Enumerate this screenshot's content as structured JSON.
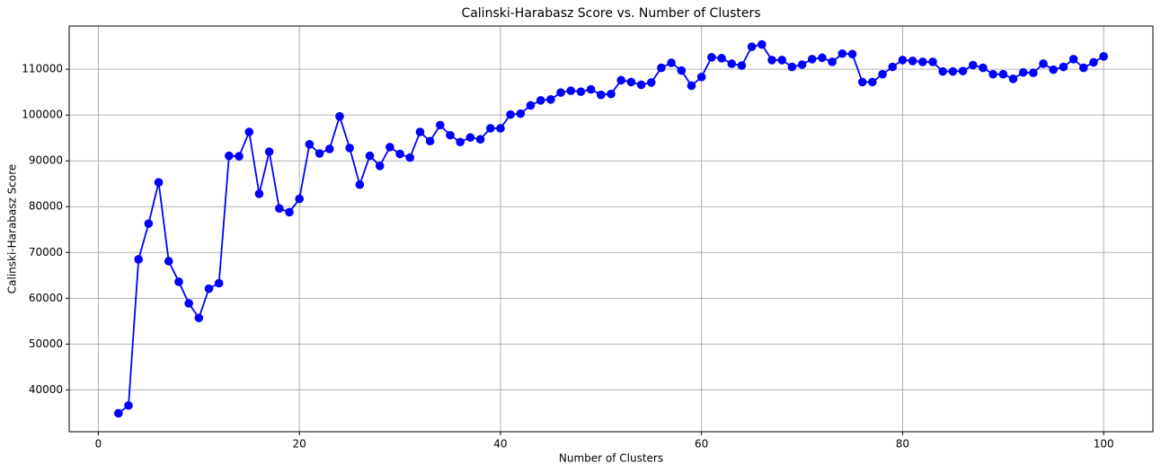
{
  "chart_data": {
    "type": "line",
    "title": "Calinski-Harabasz Score vs. Number of Clusters",
    "x_label": "Number of Clusters",
    "y_label": "Calinski-Harabasz Score",
    "x": [
      2,
      3,
      4,
      5,
      6,
      7,
      8,
      9,
      10,
      11,
      12,
      13,
      14,
      15,
      16,
      17,
      18,
      19,
      20,
      21,
      22,
      23,
      24,
      25,
      26,
      27,
      28,
      29,
      30,
      31,
      32,
      33,
      34,
      35,
      36,
      37,
      38,
      39,
      40,
      41,
      42,
      43,
      44,
      45,
      46,
      47,
      48,
      49,
      50,
      51,
      52,
      53,
      54,
      55,
      56,
      57,
      58,
      59,
      60,
      61,
      62,
      63,
      64,
      65,
      66,
      67,
      68,
      69,
      70,
      71,
      72,
      73,
      74,
      75,
      76,
      77,
      78,
      79,
      80,
      81,
      82,
      83,
      84,
      85,
      86,
      87,
      88,
      89,
      90,
      91,
      92,
      93,
      94,
      95,
      96,
      97,
      98,
      99,
      100
    ],
    "series": [
      {
        "color": "#0000ff",
        "values": [
          34900,
          36600,
          68500,
          76300,
          85300,
          68100,
          63600,
          58900,
          55700,
          62100,
          63300,
          91100,
          91000,
          96300,
          82800,
          92000,
          79600,
          78800,
          81700,
          93600,
          91600,
          92600,
          99700,
          92800,
          84800,
          91100,
          88900,
          93000,
          91500,
          90700,
          96300,
          94300,
          97800,
          95600,
          94100,
          95100,
          94700,
          97100,
          97100,
          100100,
          100300,
          102100,
          103200,
          103400,
          104900,
          105300,
          105100,
          105600,
          104400,
          104600,
          107600,
          107200,
          106600,
          107100,
          110300,
          111400,
          109700,
          106400,
          108300,
          112600,
          112400,
          111200,
          110800,
          114900,
          115400,
          112000,
          112000,
          110500,
          111000,
          112200,
          112500,
          111600,
          113400,
          113300,
          107200,
          107200,
          108900,
          110500,
          112000,
          111800,
          111600,
          111600,
          109500,
          109500,
          109600,
          110900,
          110300,
          108900,
          108900,
          107900,
          109300,
          109200,
          111200,
          109900,
          110500,
          112200,
          110300,
          111500,
          112800
        ]
      }
    ],
    "xlim": [
      -2.9,
      104.9
    ],
    "xticks": [
      0,
      20,
      40,
      60,
      80,
      100
    ],
    "ylim": [
      30875,
      119425
    ],
    "yticks": [
      40000,
      50000,
      60000,
      70000,
      80000,
      90000,
      100000,
      110000
    ],
    "grid": true,
    "marker": "circle"
  }
}
